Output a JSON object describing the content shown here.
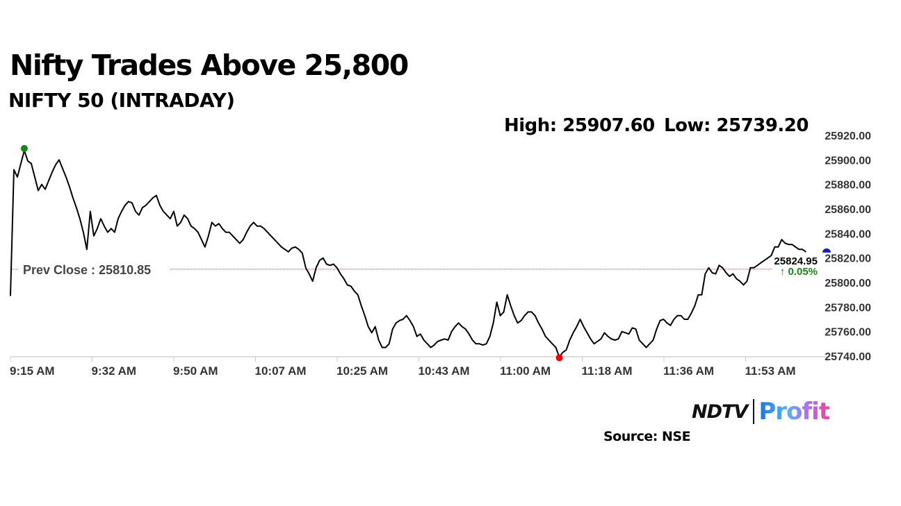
{
  "header": {
    "title": "Nifty Trades Above 25,800",
    "subtitle": "NIFTY 50 (INTRADAY)",
    "high": "High: 25907.60",
    "low": "Low: 25739.20"
  },
  "footer": {
    "logo_text": "NDTV | Profit",
    "logo_left": "NDTV",
    "logo_right": "Profit",
    "source": "Source: NSE"
  },
  "colors": {
    "line": "#000000",
    "prev_close": "#d9342b",
    "high_dot": "#108a10",
    "low_dot": "#ff0000",
    "last_dot": "#1a1acc",
    "change": "#108a10"
  },
  "chart_data": {
    "type": "line",
    "title": "NIFTY 50 (INTRADAY)",
    "xlabel": "",
    "ylabel": "",
    "x_start_label": "9:15 AM",
    "x_step_minutes": 0.7485,
    "xlim_minutes": [
      0,
      176
    ],
    "ylim": [
      25740,
      25920
    ],
    "yticks": [
      "25740.00",
      "25760.00",
      "25780.00",
      "25800.00",
      "25820.00",
      "25840.00",
      "25860.00",
      "25880.00",
      "25900.00",
      "25920.00"
    ],
    "xticks": [
      {
        "label": "9:15 AM",
        "minute": 0
      },
      {
        "label": "9:32 AM",
        "minute": 17.6
      },
      {
        "label": "9:50 AM",
        "minute": 35.2
      },
      {
        "label": "10:07 AM",
        "minute": 52.8
      },
      {
        "label": "10:25 AM",
        "minute": 70.4
      },
      {
        "label": "10:43 AM",
        "minute": 88
      },
      {
        "label": "11:00 AM",
        "minute": 105.6
      },
      {
        "label": "11:18 AM",
        "minute": 123.2
      },
      {
        "label": "11:36 AM",
        "minute": 140.8
      },
      {
        "label": "11:53 AM",
        "minute": 158.4
      }
    ],
    "prev_close": {
      "label": "Prev Close : 25810.85",
      "value": 25810.85
    },
    "high": {
      "value": 25907.6,
      "index": 4
    },
    "low": {
      "value": 25739.2,
      "index": 158
    },
    "last": {
      "label": "25824.95",
      "value": 25824.95,
      "change": "↑ 0.05%"
    },
    "values": [
      25789,
      25892,
      25886,
      25897,
      25907.6,
      25899,
      25897,
      25886,
      25875,
      25880,
      25876,
      25883,
      25890,
      25896,
      25900,
      25893,
      25886,
      25878,
      25869,
      25861,
      25852,
      25841,
      25827,
      25858,
      25838,
      25844,
      25852,
      25846,
      25841,
      25844,
      25841,
      25852,
      25858,
      25863,
      25866,
      25865,
      25858,
      25855,
      25861,
      25863,
      25866,
      25869,
      25871,
      25863,
      25858,
      25855,
      25852,
      25858,
      25846,
      25849,
      25855,
      25852,
      25846,
      25844,
      25841,
      25835,
      25829,
      25838,
      25849,
      25846,
      25848,
      25844,
      25841,
      25841,
      25838,
      25835,
      25832,
      25835,
      25841,
      25846,
      25849,
      25846,
      25846,
      25844,
      25841,
      25838,
      25835,
      25832,
      25829,
      25827,
      25825,
      25828,
      25829,
      25827,
      25824,
      25812,
      25807,
      25801,
      25812,
      25818,
      25820,
      25815,
      25814,
      25815,
      25812,
      25807,
      25803,
      25798,
      25797,
      25793,
      25790,
      25781,
      25773,
      25764,
      25759,
      25764,
      25753,
      25747,
      25747,
      25750,
      25762,
      25767,
      25769,
      25770,
      25773,
      25769,
      25764,
      25756,
      25758,
      25753,
      25750,
      25747,
      25749,
      25752,
      25753,
      25754,
      25753,
      25760,
      25764,
      25767,
      25764,
      25762,
      25758,
      25753,
      25750,
      25750,
      25749,
      25750,
      25756,
      25767,
      25784,
      25773,
      25776,
      25790,
      25781,
      25773,
      25767,
      25769,
      25773,
      25776,
      25776,
      25773,
      25767,
      25762,
      25756,
      25753,
      25750,
      25747,
      25739.2,
      25743,
      25745,
      25753,
      25759,
      25764,
      25770,
      25764,
      25759,
      25754,
      25750,
      25752,
      25754,
      25759,
      25756,
      25754,
      25753,
      25754,
      25760,
      25759,
      25758,
      25763,
      25762,
      25753,
      25750,
      25747,
      25750,
      25753,
      25762,
      25769,
      25770,
      25767,
      25765,
      25770,
      25773,
      25773,
      25770,
      25770,
      25775,
      25781,
      25790,
      25790,
      25807,
      25812,
      25808,
      25807,
      25814,
      25812,
      25808,
      25805,
      25807,
      25803,
      25801,
      25798,
      25801,
      25812,
      25812,
      25814,
      25816,
      25818,
      25820,
      25822,
      25829,
      25829,
      25835,
      25832,
      25831,
      25831,
      25829,
      25827,
      25827,
      25824.95
    ]
  }
}
